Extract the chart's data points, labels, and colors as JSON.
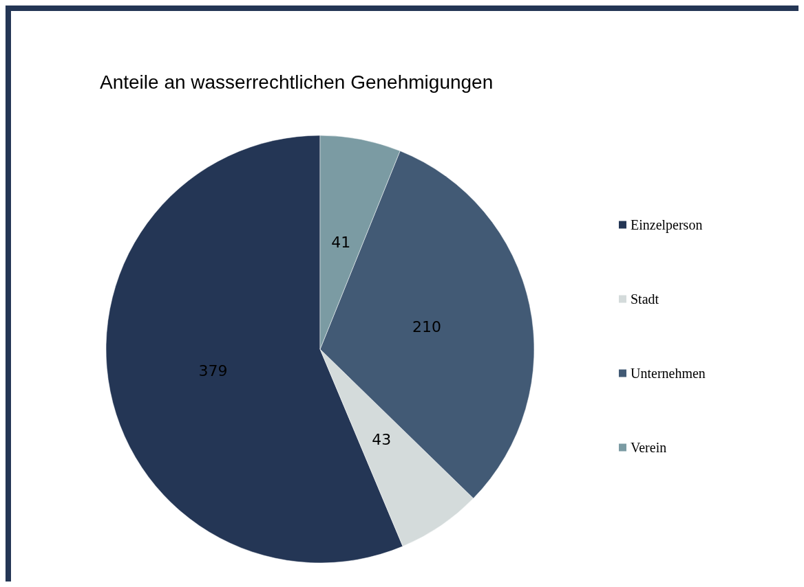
{
  "chart_data": {
    "type": "pie",
    "title": "Anteile an wasserrechtlichen Genehmigungen",
    "categories": [
      "Einzelperson",
      "Stadt",
      "Unternehmen",
      "Verein"
    ],
    "values": [
      379,
      43,
      210,
      41
    ],
    "colors": [
      "#243655",
      "#d4dbdb",
      "#425a75",
      "#7b9ba3"
    ],
    "data_labels": true,
    "legend": "right"
  }
}
